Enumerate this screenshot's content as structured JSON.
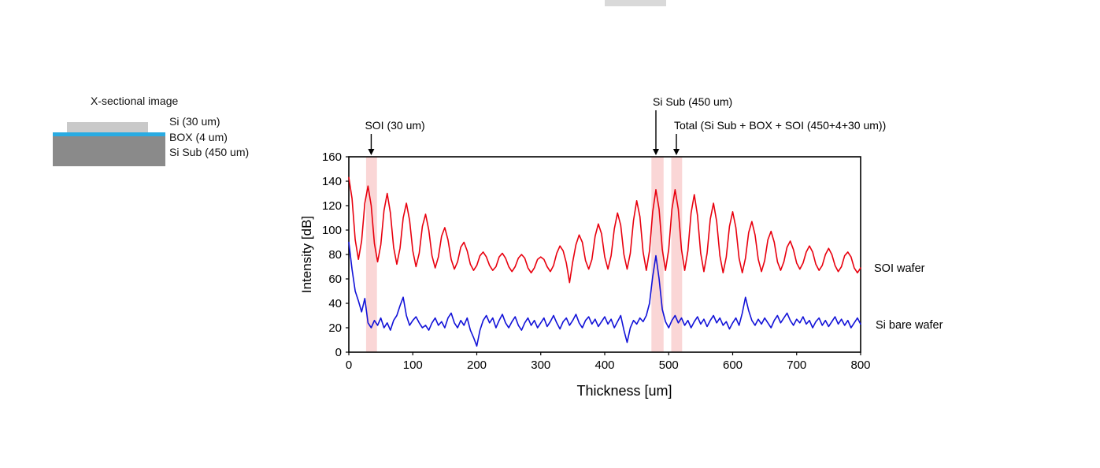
{
  "xsection": {
    "title": "X-sectional image",
    "layers": [
      {
        "label": "Si (30 um)",
        "color": "#c9c9c9"
      },
      {
        "label": "BOX (4 um)",
        "color": "#29abe2"
      },
      {
        "label": "Si Sub (450 um)",
        "color": "#8a8a8a"
      }
    ]
  },
  "chart_data": {
    "type": "line",
    "title": "",
    "xlabel": "Thickness [um]",
    "ylabel": "Intensity [dB]",
    "xlim": [
      0,
      800
    ],
    "ylim": [
      0,
      160
    ],
    "xticks": [
      0,
      100,
      200,
      300,
      400,
      500,
      600,
      700,
      800
    ],
    "yticks": [
      0,
      20,
      40,
      60,
      80,
      100,
      120,
      140,
      160
    ],
    "grid": false,
    "legend_position": "right-outside",
    "band_color": "#f5b4b4",
    "highlight_bands": [
      {
        "x0": 27,
        "x1": 44
      },
      {
        "x0": 473,
        "x1": 492
      },
      {
        "x0": 504,
        "x1": 521
      }
    ],
    "annotations": [
      {
        "label": "SOI (30 um)",
        "x": 35
      },
      {
        "label": "Si Sub (450 um)",
        "x": 480
      },
      {
        "label": "Total (Si Sub + BOX + SOI (450+4+30 um))",
        "x": 512
      }
    ],
    "series": [
      {
        "name": "SOI wafer",
        "color": "#e8000e",
        "x_start": 0,
        "x_step": 5,
        "y": [
          143,
          126,
          92,
          76,
          91,
          122,
          136,
          120,
          89,
          74,
          88,
          116,
          130,
          114,
          86,
          72,
          85,
          110,
          122,
          108,
          83,
          70,
          81,
          103,
          113,
          100,
          79,
          69,
          78,
          95,
          102,
          92,
          76,
          68,
          74,
          86,
          90,
          83,
          72,
          67,
          71,
          79,
          82,
          78,
          71,
          67,
          70,
          78,
          81,
          77,
          70,
          66,
          70,
          77,
          80,
          77,
          69,
          65,
          69,
          76,
          78,
          76,
          70,
          66,
          71,
          81,
          87,
          83,
          73,
          57,
          74,
          88,
          96,
          90,
          75,
          68,
          76,
          95,
          105,
          97,
          78,
          68,
          79,
          101,
          114,
          104,
          80,
          68,
          81,
          108,
          124,
          111,
          82,
          67,
          83,
          115,
          133,
          117,
          84,
          67,
          84,
          117,
          133,
          117,
          84,
          67,
          83,
          114,
          129,
          112,
          81,
          66,
          81,
          109,
          122,
          107,
          79,
          65,
          78,
          103,
          115,
          102,
          77,
          65,
          77,
          98,
          107,
          96,
          76,
          66,
          75,
          92,
          99,
          90,
          74,
          67,
          74,
          86,
          91,
          84,
          73,
          68,
          73,
          82,
          87,
          82,
          72,
          67,
          71,
          80,
          85,
          80,
          71,
          66,
          70,
          79,
          82,
          78,
          69,
          65,
          69
        ]
      },
      {
        "name": "Si bare wafer",
        "color": "#1212d8",
        "x_start": 0,
        "x_step": 5,
        "y": [
          90,
          68,
          50,
          42,
          33,
          44,
          24,
          20,
          26,
          22,
          28,
          20,
          24,
          18,
          26,
          30,
          38,
          45,
          30,
          22,
          26,
          29,
          24,
          20,
          22,
          18,
          24,
          28,
          22,
          25,
          20,
          28,
          32,
          24,
          20,
          26,
          22,
          28,
          18,
          12,
          5,
          18,
          26,
          30,
          24,
          28,
          20,
          26,
          31,
          24,
          20,
          25,
          29,
          22,
          18,
          24,
          28,
          22,
          26,
          20,
          24,
          28,
          21,
          25,
          30,
          24,
          19,
          25,
          28,
          22,
          26,
          31,
          24,
          20,
          26,
          29,
          23,
          27,
          21,
          25,
          29,
          23,
          27,
          20,
          25,
          30,
          18,
          8,
          20,
          26,
          23,
          28,
          25,
          30,
          40,
          62,
          79,
          60,
          35,
          25,
          20,
          26,
          30,
          24,
          28,
          22,
          26,
          20,
          25,
          29,
          23,
          27,
          21,
          26,
          30,
          24,
          28,
          22,
          25,
          19,
          24,
          28,
          22,
          32,
          45,
          34,
          26,
          22,
          27,
          23,
          28,
          24,
          20,
          26,
          30,
          24,
          28,
          32,
          26,
          22,
          27,
          24,
          29,
          23,
          26,
          20,
          25,
          28,
          22,
          26,
          21,
          25,
          29,
          23,
          27,
          22,
          26,
          20,
          24,
          28,
          23
        ]
      }
    ]
  }
}
